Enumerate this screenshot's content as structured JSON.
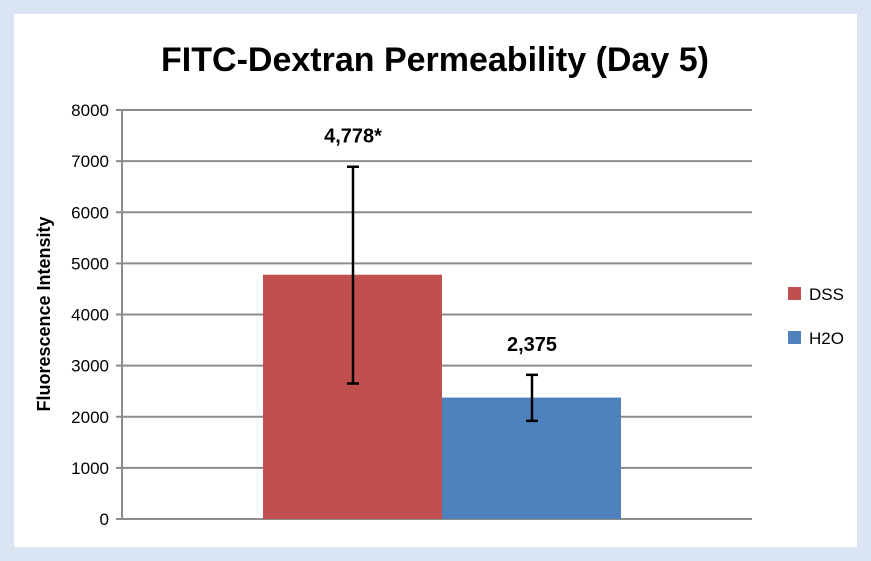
{
  "chart_data": {
    "type": "bar",
    "title": "FITC-Dextran Permeability (Day 5)",
    "xlabel": "",
    "ylabel": "Fluorescence Intensity",
    "ylim": [
      0,
      8000
    ],
    "yticks": [
      0,
      1000,
      2000,
      3000,
      4000,
      5000,
      6000,
      7000,
      8000
    ],
    "grid": true,
    "legend_position": "right",
    "series": [
      {
        "name": "DSS",
        "color": "#c0504d",
        "value": 4778,
        "error_low": 2650,
        "error_high": 6890,
        "data_label": "4,778*"
      },
      {
        "name": "H2O",
        "color": "#4f81bd",
        "value": 2375,
        "error_low": 1920,
        "error_high": 2820,
        "data_label": "2,375"
      }
    ]
  }
}
